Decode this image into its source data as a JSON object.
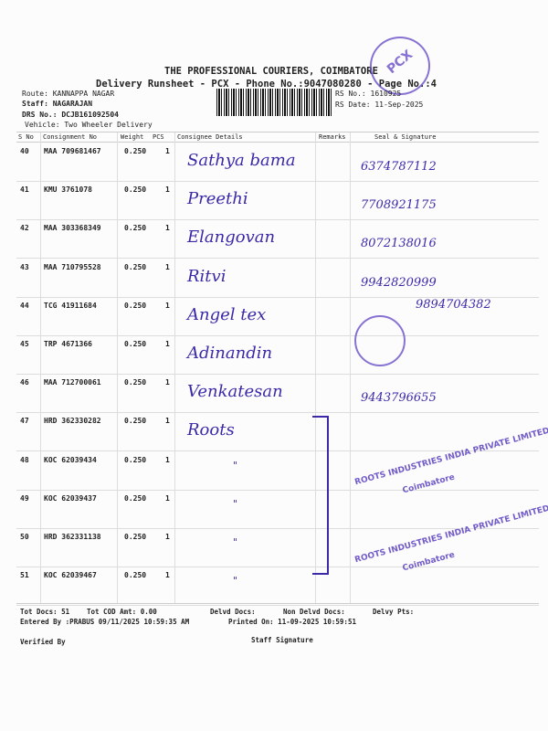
{
  "header": {
    "title": "THE PROFESSIONAL COURIERS, COIMBATORE",
    "subtitle": "Delivery Runsheet - PCX - Phone No.:9047080280 - Page No.:4",
    "route": "Route: KANNAPPA NAGAR",
    "staff": "Staff: NAGARAJAN",
    "drs": "DRS No.: DCJB161092504",
    "vehicle": "Vehicle: Two Wheeler Delivery",
    "rs_no": "RS No.: 1610925",
    "rs_date": "RS Date: 11-Sep-2025",
    "stamp": "PCX"
  },
  "columns": [
    "S No",
    "Consignment No",
    "Weight",
    "PCS",
    "Consignee Details",
    "Remarks",
    "Seal & Signature"
  ],
  "rows": [
    {
      "sno": "40",
      "cn": "MAA 709681467",
      "wt": "0.250",
      "pcs": "1",
      "name": "Sathya bama",
      "sig": "6374787112"
    },
    {
      "sno": "41",
      "cn": "KMU 3761078",
      "wt": "0.250",
      "pcs": "1",
      "name": "Preethi",
      "sig": "7708921175"
    },
    {
      "sno": "42",
      "cn": "MAA 303368349",
      "wt": "0.250",
      "pcs": "1",
      "name": "Elangovan",
      "sig": "8072138016"
    },
    {
      "sno": "43",
      "cn": "MAA 710795528",
      "wt": "0.250",
      "pcs": "1",
      "name": "Ritvi",
      "sig": "9942820999"
    },
    {
      "sno": "44",
      "cn": "TCG 41911684",
      "wt": "0.250",
      "pcs": "1",
      "name": "Angel tex",
      "sig": "9894704382"
    },
    {
      "sno": "45",
      "cn": "TRP 4671366",
      "wt": "0.250",
      "pcs": "1",
      "name": "Adinandin",
      "sig": ""
    },
    {
      "sno": "46",
      "cn": "MAA 712700061",
      "wt": "0.250",
      "pcs": "1",
      "name": "Venkatesan",
      "sig": "9443796655"
    },
    {
      "sno": "47",
      "cn": "HRD 362330282",
      "wt": "0.250",
      "pcs": "1",
      "name": "Roots",
      "sig": ""
    },
    {
      "sno": "48",
      "cn": "KOC 62039434",
      "wt": "0.250",
      "pcs": "1",
      "name": "\"",
      "sig": ""
    },
    {
      "sno": "49",
      "cn": "KOC 62039437",
      "wt": "0.250",
      "pcs": "1",
      "name": "\"",
      "sig": ""
    },
    {
      "sno": "50",
      "cn": "HRD 362331138",
      "wt": "0.250",
      "pcs": "1",
      "name": "\"",
      "sig": ""
    },
    {
      "sno": "51",
      "cn": "KOC 62039467",
      "wt": "0.250",
      "pcs": "1",
      "name": "\"",
      "sig": ""
    }
  ],
  "stamps": {
    "roots": "ROOTS INDUSTRIES INDIA PRIVATE LIMITED",
    "roots_city": "Coimbatore"
  },
  "footer": {
    "tot_docs": "Tot Docs:  51",
    "cod": "Tot COD Amt:    0.00",
    "delvd": "Delvd Docs:",
    "non_delvd": "Non Delvd Docs:",
    "pts": "Delvy Pts:",
    "entered": "Entered By :PRABUS 09/11/2025 10:59:35 AM",
    "printed": "Printed On: 11-09-2025 10:59:51",
    "verified": "Verified By",
    "staff_sig": "Staff Signature"
  }
}
